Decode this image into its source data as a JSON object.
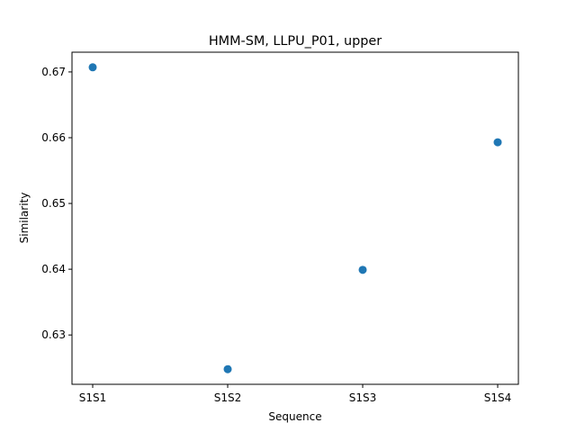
{
  "chart_data": {
    "type": "scatter",
    "title": "HMM-SM, LLPU_P01, upper",
    "xlabel": "Sequence",
    "ylabel": "Similarity",
    "categories": [
      "S1S1",
      "S1S2",
      "S1S3",
      "S1S4"
    ],
    "series": [
      {
        "values": [
          0.6707,
          0.6248,
          0.6399,
          0.6593
        ],
        "color": "#1f77b4"
      }
    ],
    "yticks": [
      "0.63",
      "0.64",
      "0.65",
      "0.66",
      "0.67"
    ],
    "ylim": [
      0.6225,
      0.673
    ],
    "grid": false,
    "legend": "none"
  }
}
